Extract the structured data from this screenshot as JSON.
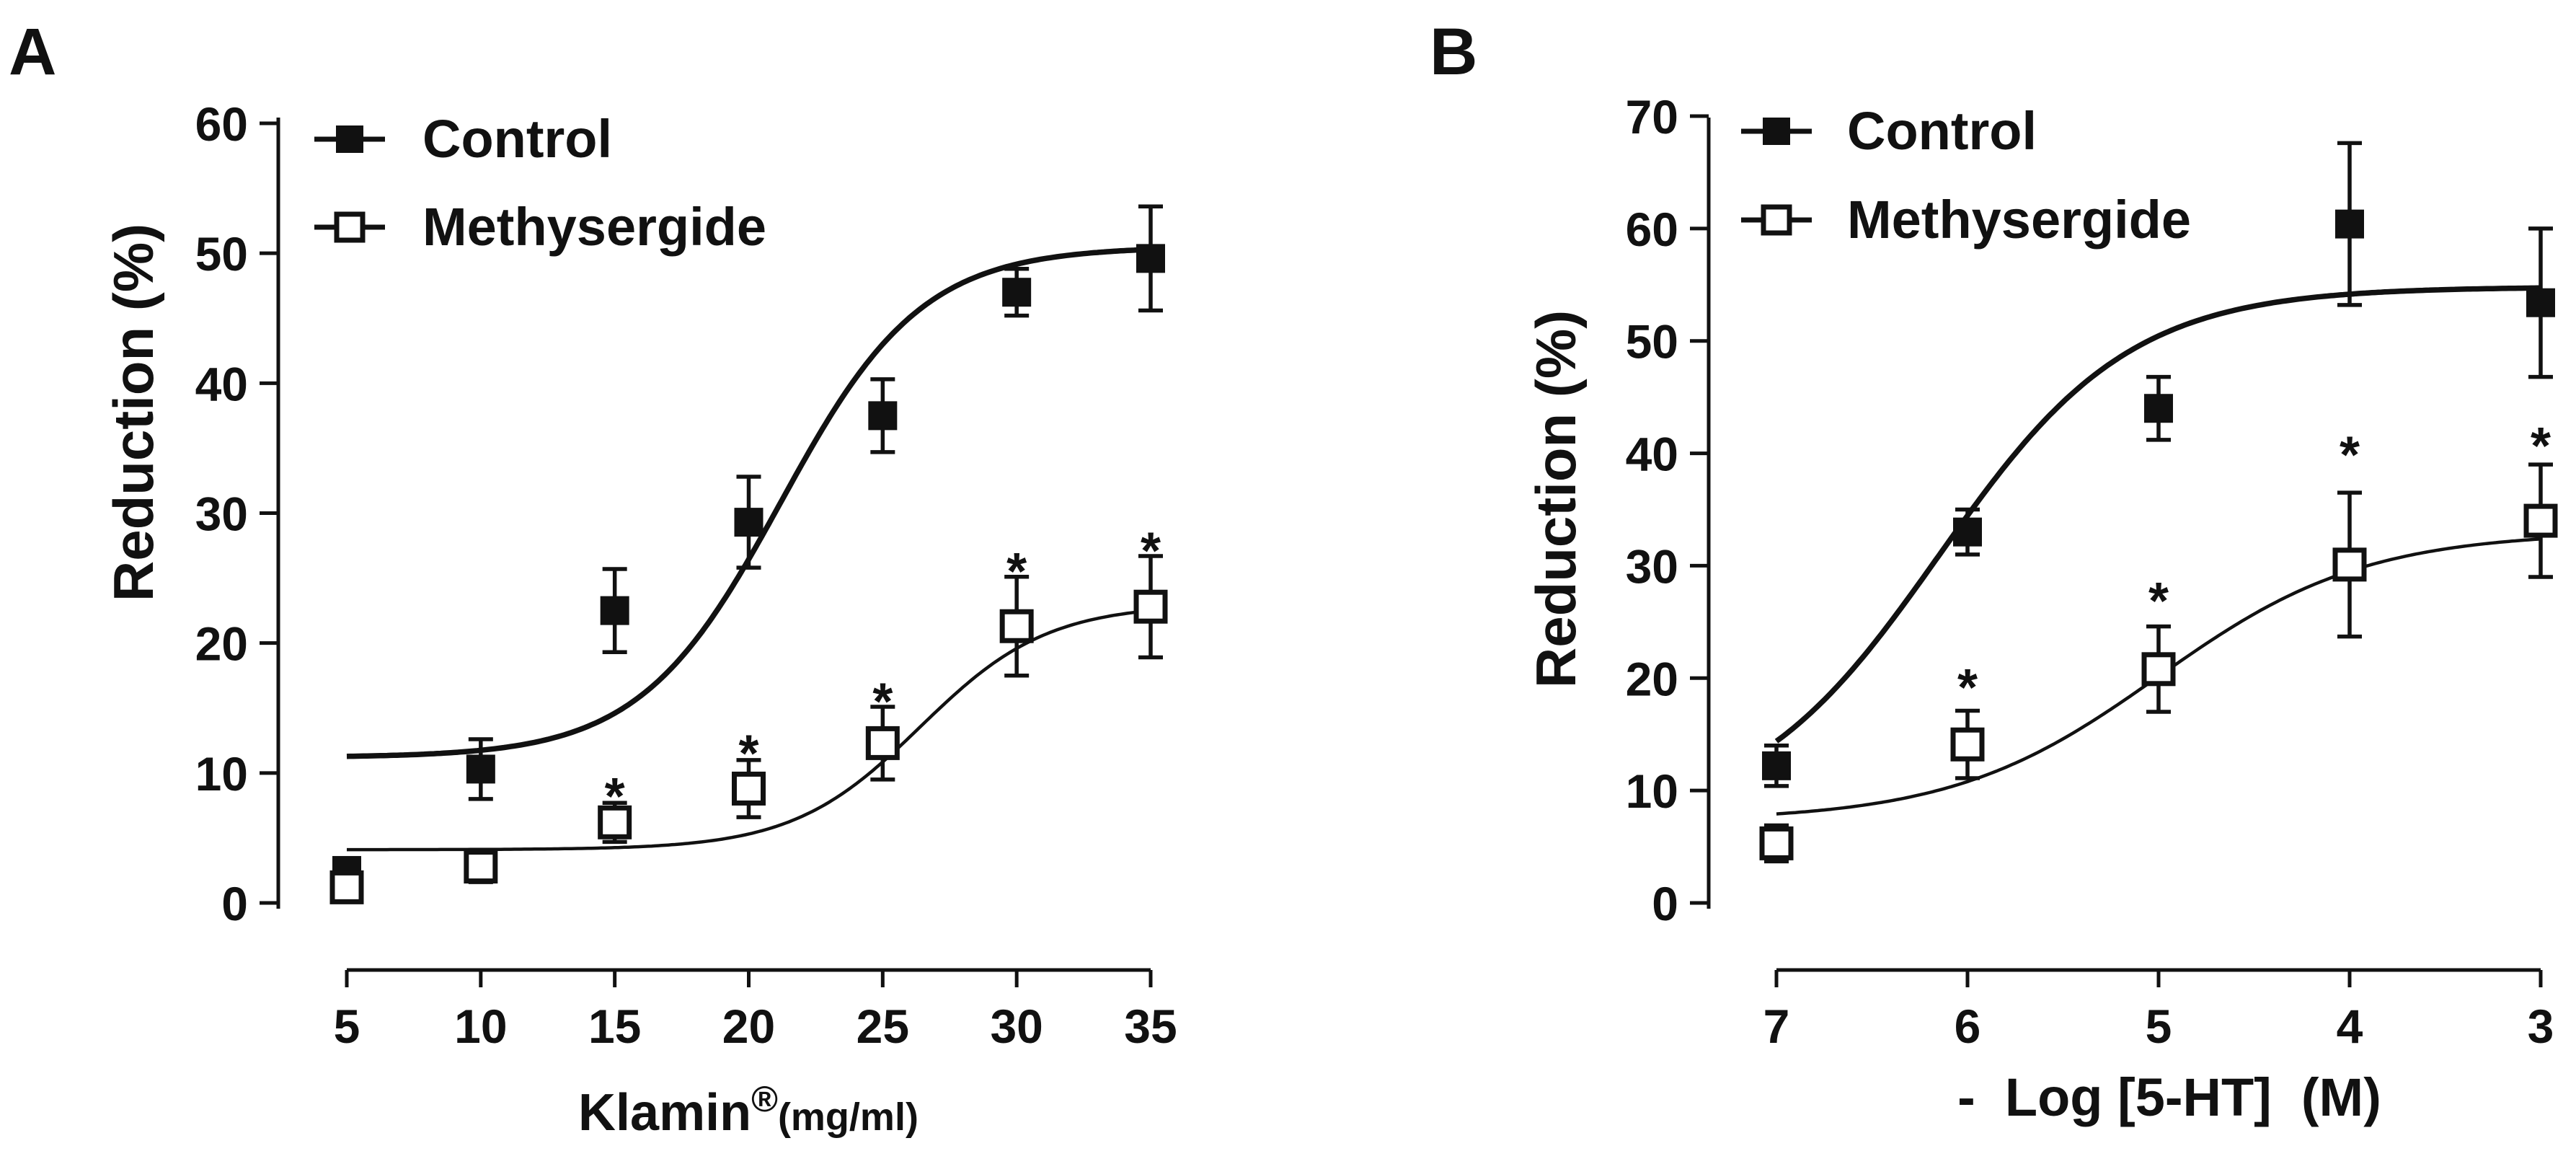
{
  "chart_data": [
    {
      "type": "scatter",
      "panel_label": "A",
      "xlabel": "Klamin",
      "xlabel_sup": "®",
      "xlabel_unit": "(mg/ml)",
      "ylabel": "Reduction (%)",
      "xlim": [
        5,
        35
      ],
      "ylim": [
        0,
        60
      ],
      "xticks": [
        "5",
        "10",
        "15",
        "20",
        "25",
        "30",
        "35"
      ],
      "yticks": [
        "0",
        "10",
        "20",
        "30",
        "40",
        "50",
        "60"
      ],
      "x": [
        5,
        10,
        15,
        20,
        25,
        30,
        35
      ],
      "legend_position": "top-left",
      "series": [
        {
          "name": "Control",
          "marker": "filled-square",
          "values": [
            2.5,
            10.3,
            22.5,
            29.3,
            37.5,
            47.0,
            49.6
          ],
          "errors": [
            0.8,
            2.3,
            3.2,
            3.5,
            2.8,
            1.8,
            4.0
          ],
          "fit": {
            "bottom": 11.2,
            "top": 50.5,
            "x50": 21.2,
            "slope": 0.38
          }
        },
        {
          "name": "Methysergide",
          "marker": "open-square",
          "values": [
            1.2,
            2.8,
            6.2,
            8.8,
            12.3,
            21.3,
            22.8
          ],
          "errors": [
            0.8,
            1.2,
            1.5,
            2.2,
            2.8,
            3.8,
            3.9
          ],
          "fit": {
            "bottom": 4.1,
            "top": 23.0,
            "x50": 26.4,
            "slope": 0.42
          }
        }
      ],
      "annotations": [
        {
          "text": "*",
          "x": 15,
          "y": 8.5
        },
        {
          "text": "*",
          "x": 20,
          "y": 11.8
        },
        {
          "text": "*",
          "x": 25,
          "y": 15.8
        },
        {
          "text": "*",
          "x": 30,
          "y": 25.8
        },
        {
          "text": "*",
          "x": 35,
          "y": 27.4
        }
      ]
    },
    {
      "type": "scatter",
      "panel_label": "B",
      "xlabel": "-  Log [5-HT]  (M)",
      "ylabel": "Reduction (%)",
      "xlim": [
        7,
        3
      ],
      "ylim": [
        0,
        70
      ],
      "xticks": [
        "7",
        "6",
        "5",
        "4",
        "3"
      ],
      "yticks": [
        "0",
        "10",
        "20",
        "30",
        "40",
        "50",
        "60",
        "70"
      ],
      "x": [
        7,
        6,
        5,
        4,
        3
      ],
      "legend_position": "top-left",
      "series": [
        {
          "name": "Control",
          "marker": "filled-square",
          "values": [
            12.2,
            33.0,
            44.0,
            60.4,
            53.4
          ],
          "errors": [
            1.8,
            2.0,
            2.8,
            7.2,
            6.6
          ],
          "fit": {
            "bottom": 7.0,
            "top": 54.8,
            "x50": 6.15,
            "slope": -2.0
          }
        },
        {
          "name": "Methysergide",
          "marker": "open-square",
          "values": [
            5.3,
            14.1,
            20.8,
            30.1,
            34.0
          ],
          "errors": [
            1.6,
            3.0,
            3.8,
            6.4,
            5.0
          ],
          "fit": {
            "bottom": 7.3,
            "top": 33.0,
            "x50": 5.0,
            "slope": -1.85
          }
        }
      ],
      "annotations": [
        {
          "text": "*",
          "x": 6,
          "y": 19.5
        },
        {
          "text": "*",
          "x": 5,
          "y": 27.2
        },
        {
          "text": "*",
          "x": 4,
          "y": 40.2
        },
        {
          "text": "*",
          "x": 3,
          "y": 41.0
        }
      ]
    }
  ]
}
